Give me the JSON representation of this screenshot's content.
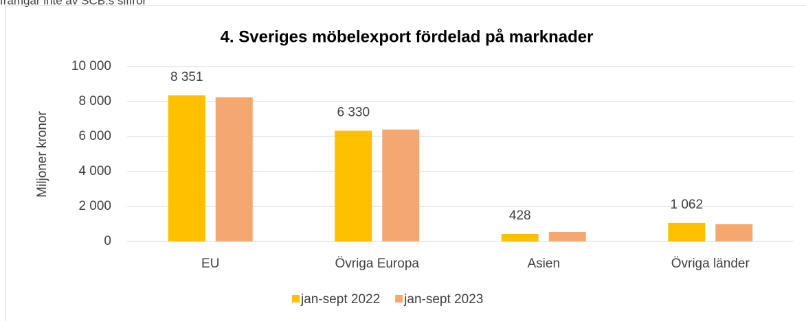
{
  "note": "framgår inte av SCB:s siffror",
  "chart_data": {
    "type": "bar",
    "title": "4. Sveriges möbelexport fördelad på marknader",
    "y_label": "Miljoner kronor",
    "categories": [
      "EU",
      "Övriga Europa",
      "Asien",
      "Övriga länder"
    ],
    "series": [
      {
        "name": "jan-sept 2022",
        "color": "#ffc000",
        "values": [
          8351,
          6330,
          428,
          1062
        ],
        "value_labels": [
          "8 351",
          "6 330",
          "428",
          "1 062"
        ]
      },
      {
        "name": "jan-sept 2023",
        "color": "#f4a870",
        "values": [
          8240,
          6400,
          550,
          980
        ]
      }
    ],
    "ylim": [
      0,
      10000
    ],
    "yticks": [
      0,
      {
        "value": 2000,
        "label": "2 000"
      },
      {
        "value": 4000,
        "label": "4 000"
      },
      {
        "value": 6000,
        "label": "6 000"
      },
      {
        "value": 8000,
        "label": "8 000"
      },
      {
        "value": 10000,
        "label": "10 000"
      }
    ],
    "grid": true,
    "legend": "bottom"
  }
}
